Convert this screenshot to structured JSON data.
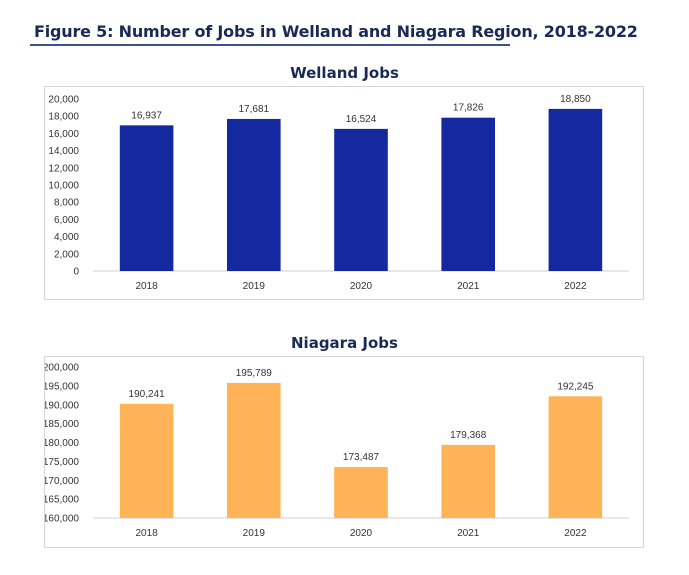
{
  "figure": {
    "title": "Figure 5: Number of Jobs in Welland and Niagara Region, 2018-2022"
  },
  "chart_data": [
    {
      "type": "bar",
      "title": "Welland Jobs",
      "categories": [
        "2018",
        "2019",
        "2020",
        "2021",
        "2022"
      ],
      "values": [
        16937,
        17681,
        16524,
        17826,
        18850
      ],
      "data_labels": [
        "16,937",
        "17,681",
        "16,524",
        "17,826",
        "18,850"
      ],
      "ylim": [
        0,
        20000
      ],
      "yticks": [
        0,
        2000,
        4000,
        6000,
        8000,
        10000,
        12000,
        14000,
        16000,
        18000,
        20000
      ],
      "ytick_labels": [
        "0",
        "2,000",
        "4,000",
        "6,000",
        "8,000",
        "10,000",
        "12,000",
        "14,000",
        "16,000",
        "18,000",
        "20,000"
      ],
      "color": "#1428a0",
      "grid": false
    },
    {
      "type": "bar",
      "title": "Niagara Jobs",
      "categories": [
        "2018",
        "2019",
        "2020",
        "2021",
        "2022"
      ],
      "values": [
        190241,
        195789,
        173487,
        179368,
        192245
      ],
      "data_labels": [
        "190,241",
        "195,789",
        "173,487",
        "179,368",
        "192,245"
      ],
      "ylim": [
        160000,
        200000
      ],
      "yticks": [
        160000,
        165000,
        170000,
        175000,
        180000,
        185000,
        190000,
        195000,
        200000
      ],
      "ytick_labels": [
        "160,000",
        "165,000",
        "170,000",
        "175,000",
        "180,000",
        "185,000",
        "190,000",
        "195,000",
        "200,000"
      ],
      "color": "#ffb357",
      "grid": false
    }
  ]
}
